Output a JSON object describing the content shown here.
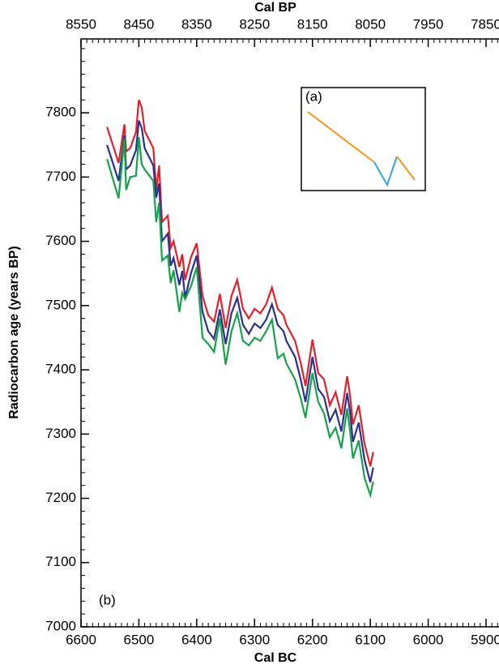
{
  "chart_data": {
    "type": "line",
    "xlabel": "Cal BC",
    "x2label": "Cal BP",
    "ylabel": "Radiocarbon age (years BP)",
    "annotations": [
      "(a)",
      "(b)"
    ],
    "xlim": [
      6600,
      5900
    ],
    "xticks": [
      6600,
      6500,
      6400,
      6300,
      6200,
      6100,
      6000,
      5900
    ],
    "x2lim": [
      8550,
      7850
    ],
    "x2ticks": [
      8550,
      8450,
      8350,
      8250,
      8150,
      8050,
      7950,
      7850
    ],
    "ylim": [
      7000,
      7915
    ],
    "yticks": [
      7000,
      7100,
      7200,
      7300,
      7400,
      7500,
      7600,
      7700,
      7800
    ],
    "minor_ticks": {
      "x": 10,
      "y": 5
    },
    "x": [
      6555,
      6535,
      6525,
      6522,
      6515,
      6505,
      6500,
      6495,
      6490,
      6475,
      6470,
      6465,
      6460,
      6450,
      6445,
      6440,
      6430,
      6425,
      6420,
      6410,
      6400,
      6390,
      6380,
      6370,
      6360,
      6350,
      6340,
      6330,
      6320,
      6310,
      6300,
      6290,
      6280,
      6270,
      6260,
      6250,
      6245,
      6230,
      6220,
      6212,
      6200,
      6190,
      6180,
      6170,
      6160,
      6150,
      6140,
      6135,
      6130,
      6120,
      6110,
      6100,
      6095
    ],
    "series": [
      {
        "color": "#e3202a",
        "values": [
          7778,
          7722,
          7782,
          7740,
          7745,
          7770,
          7820,
          7808,
          7772,
          7745,
          7680,
          7718,
          7630,
          7640,
          7590,
          7600,
          7560,
          7580,
          7540,
          7575,
          7597,
          7515,
          7485,
          7475,
          7518,
          7465,
          7515,
          7540,
          7495,
          7480,
          7495,
          7488,
          7502,
          7528,
          7495,
          7485,
          7470,
          7445,
          7410,
          7375,
          7447,
          7395,
          7385,
          7345,
          7365,
          7330,
          7390,
          7360,
          7315,
          7345,
          7285,
          7250,
          7272
        ]
      },
      {
        "color": "#2b2f8f",
        "values": [
          7750,
          7694,
          7765,
          7712,
          7718,
          7742,
          7788,
          7776,
          7745,
          7718,
          7668,
          7690,
          7600,
          7612,
          7562,
          7574,
          7532,
          7554,
          7512,
          7550,
          7578,
          7490,
          7460,
          7448,
          7494,
          7440,
          7488,
          7512,
          7470,
          7456,
          7472,
          7465,
          7478,
          7502,
          7470,
          7460,
          7445,
          7420,
          7384,
          7350,
          7420,
          7370,
          7358,
          7320,
          7338,
          7304,
          7364,
          7334,
          7288,
          7318,
          7260,
          7225,
          7248
        ]
      },
      {
        "color": "#16a14b",
        "values": [
          7728,
          7667,
          7760,
          7680,
          7700,
          7702,
          7762,
          7720,
          7712,
          7694,
          7630,
          7660,
          7570,
          7578,
          7535,
          7555,
          7490,
          7520,
          7510,
          7530,
          7560,
          7450,
          7440,
          7428,
          7480,
          7408,
          7460,
          7488,
          7445,
          7438,
          7450,
          7445,
          7460,
          7478,
          7418,
          7425,
          7410,
          7385,
          7355,
          7325,
          7395,
          7350,
          7332,
          7295,
          7310,
          7278,
          7340,
          7305,
          7262,
          7290,
          7232,
          7205,
          7226
        ]
      }
    ]
  }
}
